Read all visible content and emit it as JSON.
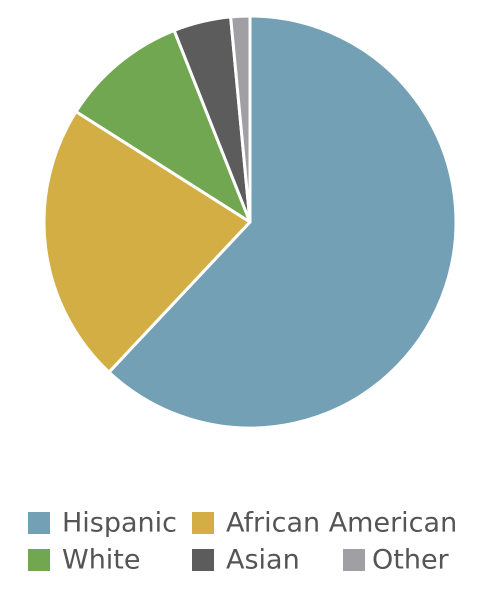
{
  "chart_data": {
    "type": "pie",
    "categories": [
      "Hispanic",
      "African American",
      "White",
      "Asian",
      "Other"
    ],
    "values": [
      62,
      22,
      10,
      4.5,
      1.5
    ],
    "colors": [
      "#74a0b5",
      "#d3ae45",
      "#72a752",
      "#5c5c5c",
      "#a0a0a4"
    ],
    "legend": "bottom"
  }
}
